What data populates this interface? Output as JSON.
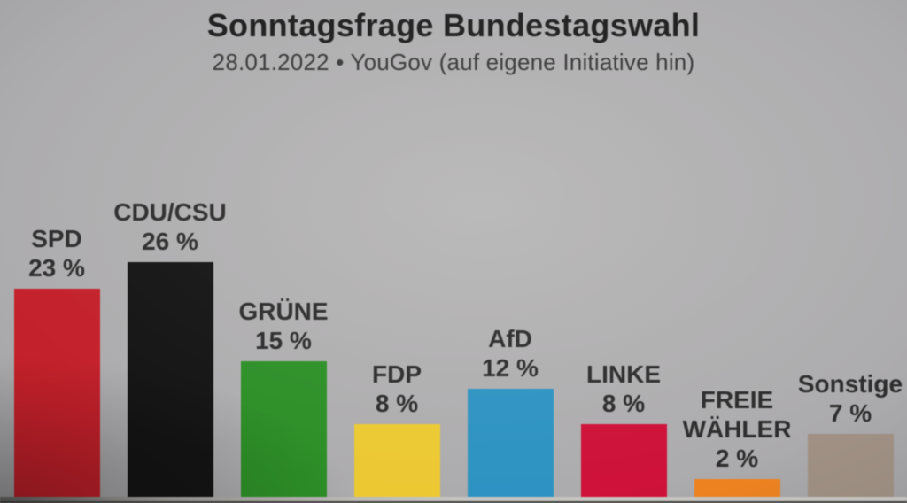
{
  "header": {
    "title": "Sonntagsfrage Bundestagswahl",
    "subtitle": "28.01.2022 • YouGov (auf eigene Initiative hin)"
  },
  "chart_data": {
    "type": "bar",
    "title": "Sonntagsfrage Bundestagswahl",
    "subtitle": "28.01.2022 • YouGov (auf eigene Initiative hin)",
    "categories": [
      "SPD",
      "CDU/CSU",
      "GRÜNE",
      "FDP",
      "AfD",
      "LINKE",
      "FREIE WÄHLER",
      "Sonstige"
    ],
    "label_lines": [
      [
        "SPD"
      ],
      [
        "CDU/CSU"
      ],
      [
        "GRÜNE"
      ],
      [
        "FDP"
      ],
      [
        "AfD"
      ],
      [
        "LINKE"
      ],
      [
        "FREIE",
        "WÄHLER"
      ],
      [
        "Sonstige"
      ]
    ],
    "values": [
      23,
      26,
      15,
      8,
      12,
      8,
      2,
      7
    ],
    "value_labels": [
      "23 %",
      "26 %",
      "15 %",
      "8 %",
      "12 %",
      "8 %",
      "2 %",
      "7 %"
    ],
    "unit": "%",
    "bar_colors": [
      "#c3202a",
      "#141414",
      "#2d8f27",
      "#ecc933",
      "#2e93c2",
      "#ce1239",
      "#ee8320",
      "#a09184"
    ],
    "xlabel": "",
    "ylabel": "",
    "ylim": [
      0,
      28
    ],
    "grid": false,
    "legend": false,
    "value_label_position": "above-bar",
    "axis_visible": false
  }
}
